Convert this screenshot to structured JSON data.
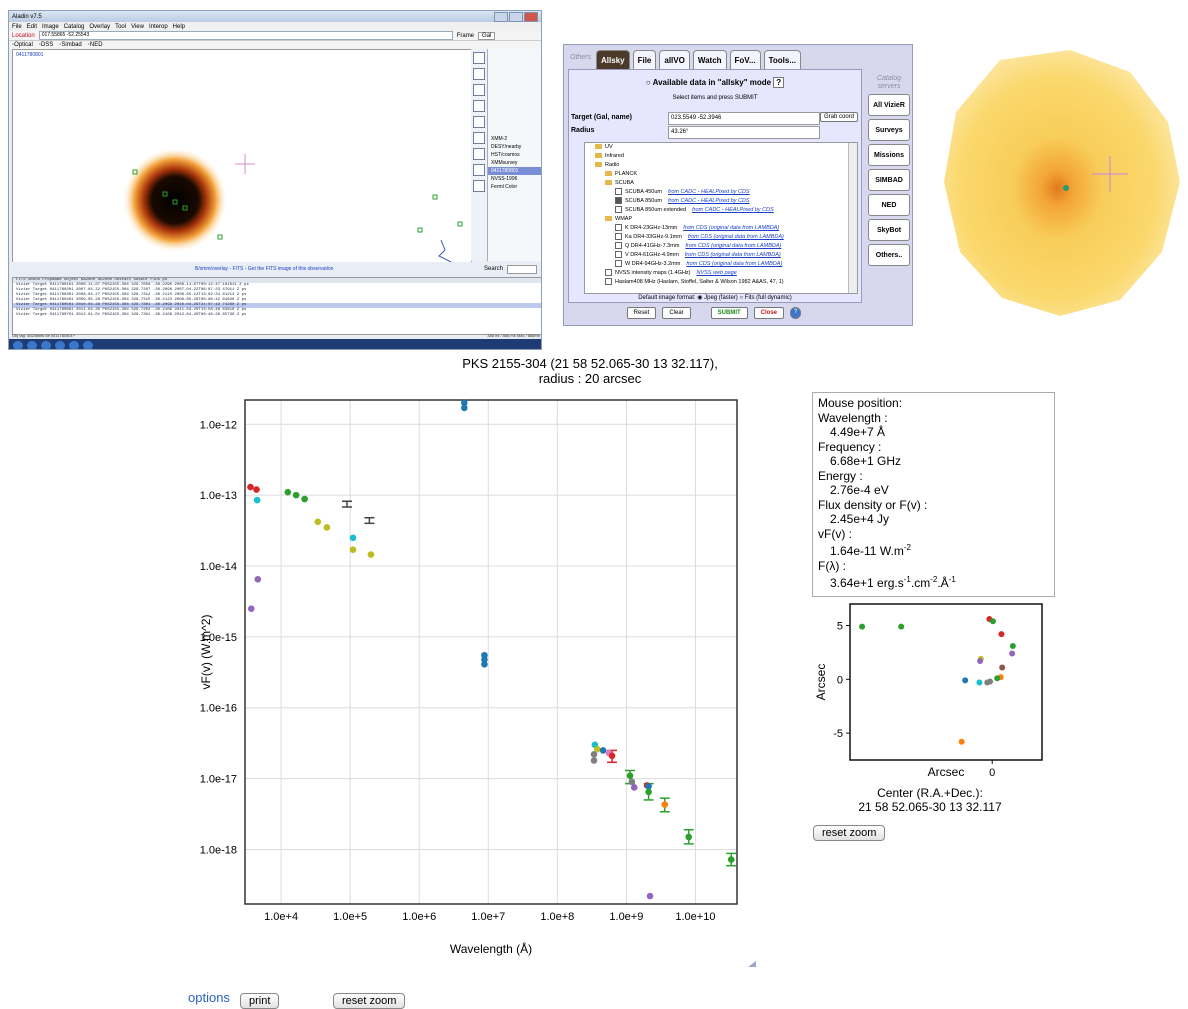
{
  "aladin": {
    "title": "Aladin v7.5",
    "menu": [
      "File",
      "Edit",
      "Image",
      "Catalog",
      "Overlay",
      "Tool",
      "View",
      "Interop",
      "Help"
    ],
    "location_label": "Location",
    "location_value": "017.55865 -52.25543",
    "frame_label": "Frame",
    "frame_value": "Gal",
    "surveys": [
      "Optical",
      "DSS",
      "Simbad",
      "NED"
    ],
    "image_label": "0411780801",
    "stack_items": [
      "XMM-2",
      "DESY/nearby",
      "HST/cosmos",
      "XMMsurvey",
      "0411780801",
      "NVSS-1996",
      "Ferml Color"
    ],
    "status_msg": "B/xmm/overlay - FITS - Get the FITS image of this observation",
    "search_label": "Search",
    "measure_header": "     FITS   Obsno   PropName    Object   RA2000   DE2000   Obstart   ObsDur  PIDs  ps",
    "measure_rows": [
      "Vizier Target 0411780101 2006-11-07 PKS2155-304  329.7058 -30.2290 2006-11-07T00:12:47 101011  Z  ps",
      "Vizier Target 0411780201 2007-04-22 PKS2155-304  329.7207 -30.2096 2007-04-22T06:07:23  47911  Z  ps",
      "Vizier Target 0411780301 2008-04-27 PKS2155-304  329.7312 -30.2110 2008-05-12T13:02:34  61214  Z  ps",
      "Vizier Target 0411780401 2009-05-28 PKS2155-304  329.7315 -30.2123 2009-05-28T06:08:42  64820  Z  ps",
      "Vizier Target 0411780501 2010-04-29 PKS2155-304  329.7301 -30.2099 2010-04-29T21:07:42  74290  Z  ps",
      "Vizier Target 0411780601 2011-04-20 PKS2155-304  329.7202 -30.2106 2011-04-20T13:58:48  63610  Z  ps",
      "Vizier Target 0411780701 2012-01-01 PKS2155-304  329.7301 -30.2108 2012-04-20T06:48:26  65730  Z  ps"
    ],
    "statusbar": "Obj tag: 4824kbits 6e 0411780801+",
    "mem_info": "388 ml / 868 ms  Max / 888mb"
  },
  "allsky": {
    "others_label": "Others",
    "tabs": [
      "Allsky",
      "File",
      "allVO",
      "Watch",
      "FoV...",
      "Tools..."
    ],
    "heading": "Available data in \"allsky\" mode",
    "help_label": "?",
    "hint": "Select items and press SUBMIT",
    "target_label": "Target (Gal, name)",
    "target_value": "023.5549 -52.3946",
    "grab_label": "Grab coord",
    "radius_label": "Radius",
    "radius_value": "43.26°",
    "tree": [
      {
        "text": "UV",
        "level": 1,
        "type": "folder",
        "link": ""
      },
      {
        "text": "Infrared",
        "level": 1,
        "type": "folder",
        "link": ""
      },
      {
        "text": "Radio",
        "level": 1,
        "type": "folder",
        "link": ""
      },
      {
        "text": "PLANCK",
        "level": 2,
        "type": "folder",
        "link": ""
      },
      {
        "text": "SCUBA",
        "level": 2,
        "type": "folder",
        "link": ""
      },
      {
        "text": "SCUBA 450um",
        "level": 3,
        "type": "check",
        "link": "from CADC - HEALPixed by CDS"
      },
      {
        "text": "SCUBA 850um",
        "level": 3,
        "type": "checked",
        "link": "from CADC - HEALPixed by CDS"
      },
      {
        "text": "SCUBA 850um extended",
        "level": 3,
        "type": "check",
        "link": "from CADC - HEALPixed by CDS"
      },
      {
        "text": "WMAP",
        "level": 2,
        "type": "folder",
        "link": ""
      },
      {
        "text": "K DR4-23GHz-13mm",
        "level": 3,
        "type": "check",
        "link": "from CDS (original data from LAMBDA)"
      },
      {
        "text": "Ka DR4-33GHz-9.1mm",
        "level": 3,
        "type": "check",
        "link": "from CDS (original data from LAMBDA)"
      },
      {
        "text": "Q DR4-41GHz-7.3mm",
        "level": 3,
        "type": "check",
        "link": "from CDS (original data from LAMBDA)"
      },
      {
        "text": "V DR4-61GHz-4.9mm",
        "level": 3,
        "type": "check",
        "link": "from CDS (original data from LAMBDA)"
      },
      {
        "text": "W DR4-94GHz-3.2mm",
        "level": 3,
        "type": "check",
        "link": "from CDS (original data from LAMBDA)"
      },
      {
        "text": "NVSS intensity maps (1.4GHz)",
        "level": 2,
        "type": "check",
        "link": "NVSS web page"
      },
      {
        "text": "Haslam408 MHz (Haslam, Stoffel, Salter & Wilson 1982 A&AS, 47, 1)",
        "level": 2,
        "type": "check",
        "link": ""
      }
    ],
    "format_label": "Default image format:",
    "format_opt1": "Jpeg (faster)",
    "format_opt2": "Fits (full dynamic)",
    "buttons": {
      "reset": "Reset",
      "clear": "Clear",
      "submit": "SUBMIT",
      "close": "Close"
    },
    "catalog_servers": "Catalog servers",
    "servers": [
      "All VizieR",
      "Surveys",
      "Missions",
      "SIMBAD",
      "NED",
      "SkyBot",
      "Others.."
    ]
  },
  "sed": {
    "title_line1": "PKS 2155-304 (21 58 52.065-30 13 32.117),",
    "title_line2": "radius : 20 arcsec",
    "xlabel": "Wavelength (Å)",
    "ylabel": "vF(v) (W.m^2)"
  },
  "chart_data": [
    {
      "type": "scatter",
      "title": "PKS 2155-304 (21 58 52.065-30 13 32.117), radius : 20 arcsec",
      "xlabel": "Wavelength (Å)",
      "ylabel": "vF(v) (W.m^2)",
      "xscale": "log",
      "yscale": "log",
      "xlim": [
        3000,
        40000000000
      ],
      "ylim": [
        1.7e-19,
        2.2e-12
      ],
      "xticks": [
        "1.0e+4",
        "1.0e+5",
        "1.0e+6",
        "1.0e+7",
        "1.0e+8",
        "1.0e+9",
        "1.0e+10"
      ],
      "yticks": [
        "1.0e-12",
        "1.0e-13",
        "1.0e-14",
        "1.0e-15",
        "1.0e-16",
        "1.0e-17",
        "1.0e-18"
      ],
      "grid": true,
      "points": [
        {
          "x": 3600,
          "y": 1.3e-13,
          "color": "#d62728"
        },
        {
          "x": 4400,
          "y": 1.2e-13,
          "color": "#d62728"
        },
        {
          "x": 4500,
          "y": 8.5e-14,
          "color": "#17becf"
        },
        {
          "x": 4600,
          "y": 6.5e-15,
          "color": "#9467bd"
        },
        {
          "x": 3700,
          "y": 2.5e-15,
          "color": "#9467bd"
        },
        {
          "x": 12500,
          "y": 1.1e-13,
          "color": "#2ca02c"
        },
        {
          "x": 16500,
          "y": 1e-13,
          "color": "#2ca02c"
        },
        {
          "x": 21900,
          "y": 8.8e-14,
          "color": "#2ca02c"
        },
        {
          "x": 34000,
          "y": 4.2e-14,
          "color": "#bcbd22"
        },
        {
          "x": 46000,
          "y": 3.5e-14,
          "color": "#bcbd22"
        },
        {
          "x": 110000,
          "y": 2.5e-14,
          "color": "#17becf"
        },
        {
          "x": 110000,
          "y": 1.7e-14,
          "color": "#bcbd22"
        },
        {
          "x": 200000,
          "y": 1.45e-14,
          "color": "#bcbd22"
        },
        {
          "x": 4500000,
          "y": 2e-12,
          "color": "#1f77b4"
        },
        {
          "x": 4500000,
          "y": 1.7e-12,
          "color": "#1f77b4"
        },
        {
          "x": 8800000,
          "y": 5.5e-16,
          "color": "#1f77b4"
        },
        {
          "x": 8800000,
          "y": 4.8e-16,
          "color": "#1f77b4"
        },
        {
          "x": 8800000,
          "y": 4.1e-16,
          "color": "#1f77b4"
        },
        {
          "x": 350000000,
          "y": 3e-17,
          "color": "#17becf"
        },
        {
          "x": 340000000,
          "y": 2.2e-17,
          "color": "#7f7f7f"
        },
        {
          "x": 340000000,
          "y": 1.8e-17,
          "color": "#7f7f7f"
        },
        {
          "x": 380000000,
          "y": 2.6e-17,
          "color": "#bcbd22"
        },
        {
          "x": 460000000,
          "y": 2.5e-17,
          "color": "#1f77b4"
        },
        {
          "x": 560000000,
          "y": 2.3e-17,
          "color": "#e377c2"
        },
        {
          "x": 620000000,
          "y": 2.1e-17,
          "color": "#d62728"
        },
        {
          "x": 1130000000,
          "y": 1.1e-17,
          "color": "#2ca02c"
        },
        {
          "x": 1200000000,
          "y": 9e-18,
          "color": "#7f7f7f"
        },
        {
          "x": 1300000000,
          "y": 7.5e-18,
          "color": "#9467bd"
        },
        {
          "x": 2000000000,
          "y": 8e-18,
          "color": "#d62728"
        },
        {
          "x": 2100000000,
          "y": 7.8e-18,
          "color": "#1f77b4"
        },
        {
          "x": 2100000000,
          "y": 6.5e-18,
          "color": "#2ca02c"
        },
        {
          "x": 2200000000,
          "y": 2.2e-19,
          "color": "#9467bd"
        },
        {
          "x": 3600000000,
          "y": 4.3e-18,
          "color": "#ff7f0e"
        },
        {
          "x": 8000000000,
          "y": 1.5e-18,
          "color": "#2ca02c"
        },
        {
          "x": 33000000000,
          "y": 7.2e-19,
          "color": "#2ca02c"
        }
      ],
      "errorbars": [
        {
          "x": 90000,
          "y": 7.5e-14,
          "lo": 6.8e-14,
          "hi": 8.2e-14,
          "color": "#444444",
          "cap": true
        },
        {
          "x": 190000,
          "y": 4.4e-14,
          "lo": 4e-14,
          "hi": 4.8e-14,
          "color": "#444444",
          "cap": true
        },
        {
          "x": 620000000,
          "y": 2.1e-17,
          "lo": 1.7e-17,
          "hi": 2.5e-17,
          "color": "#d62728",
          "cap": true
        },
        {
          "x": 1130000000,
          "y": 1.1e-17,
          "lo": 8.5e-18,
          "hi": 1.3e-17,
          "color": "#2ca02c",
          "cap": true
        },
        {
          "x": 2100000000,
          "y": 6.5e-18,
          "lo": 5e-18,
          "hi": 8.5e-18,
          "color": "#2ca02c",
          "cap": true
        },
        {
          "x": 3600000000,
          "y": 4.3e-18,
          "lo": 3.4e-18,
          "hi": 5.3e-18,
          "color": "#2ca02c",
          "cap": true
        },
        {
          "x": 8000000000,
          "y": 1.5e-18,
          "lo": 1.2e-18,
          "hi": 1.9e-18,
          "color": "#2ca02c",
          "cap": true
        },
        {
          "x": 33000000000,
          "y": 7.2e-19,
          "lo": 5.9e-19,
          "hi": 8.8e-19,
          "color": "#2ca02c",
          "cap": true
        }
      ]
    },
    {
      "type": "scatter",
      "xlabel": "Arcsec",
      "ylabel": "Arcsec",
      "xlim": [
        -20,
        7
      ],
      "ylim": [
        -7.5,
        7
      ],
      "xticks": [
        "0"
      ],
      "yticks": [
        "5",
        "0",
        "-5"
      ],
      "points": [
        {
          "x": -18.3,
          "y": 4.9,
          "color": "#2ca02c"
        },
        {
          "x": -12.8,
          "y": 4.9,
          "color": "#2ca02c"
        },
        {
          "x": -0.4,
          "y": 5.6,
          "color": "#d62728"
        },
        {
          "x": 0.1,
          "y": 5.4,
          "color": "#2ca02c"
        },
        {
          "x": 1.3,
          "y": 4.2,
          "color": "#d62728"
        },
        {
          "x": 2.9,
          "y": 3.1,
          "color": "#2ca02c"
        },
        {
          "x": 2.8,
          "y": 2.4,
          "color": "#9467bd"
        },
        {
          "x": -1.6,
          "y": 1.9,
          "color": "#bcbd22"
        },
        {
          "x": -1.7,
          "y": 1.7,
          "color": "#9467bd"
        },
        {
          "x": 1.4,
          "y": 1.1,
          "color": "#8c564b"
        },
        {
          "x": 1.2,
          "y": 0.2,
          "color": "#ff7f0e"
        },
        {
          "x": 0.7,
          "y": 0.1,
          "color": "#2ca02c"
        },
        {
          "x": -0.3,
          "y": -0.2,
          "color": "#7f7f7f"
        },
        {
          "x": -0.7,
          "y": -0.3,
          "color": "#7f7f7f"
        },
        {
          "x": -1.8,
          "y": -0.3,
          "color": "#17becf"
        },
        {
          "x": -3.8,
          "y": -0.1,
          "color": "#1f77b4"
        },
        {
          "x": -4.3,
          "y": -5.8,
          "color": "#ff7f0e"
        }
      ]
    }
  ],
  "info": {
    "mouse_position": "Mouse position:",
    "wavelength_label": "Wavelength :",
    "wavelength_value": "4.49e+7 Å",
    "frequency_label": "Frequency :",
    "frequency_value": "6.68e+1 GHz",
    "energy_label": "Energy :",
    "energy_value": "2.76e-4 eV",
    "flux_label": "Flux density or F(v) :",
    "flux_value": "2.45e+4 Jy",
    "vfv_label": "vF(v) :",
    "vfv_value": "1.64e-11 W.m",
    "vfv_exp": "-2",
    "flambda_label": "F(λ) :",
    "flambda_value": "3.64e+1 erg.s",
    "flambda_e1": "-1",
    "flambda_m1": ".cm",
    "flambda_e2": "-2",
    "flambda_m2": ".Å",
    "flambda_e3": "-1"
  },
  "center": {
    "line1": "Center (R.A.+Dec.):",
    "line2": "21 58 52.065-30 13 32.117"
  },
  "reset_zoom_small": "reset zoom",
  "options_label": "options",
  "print_label": "print",
  "reset_zoom_bottom": "reset zoom"
}
